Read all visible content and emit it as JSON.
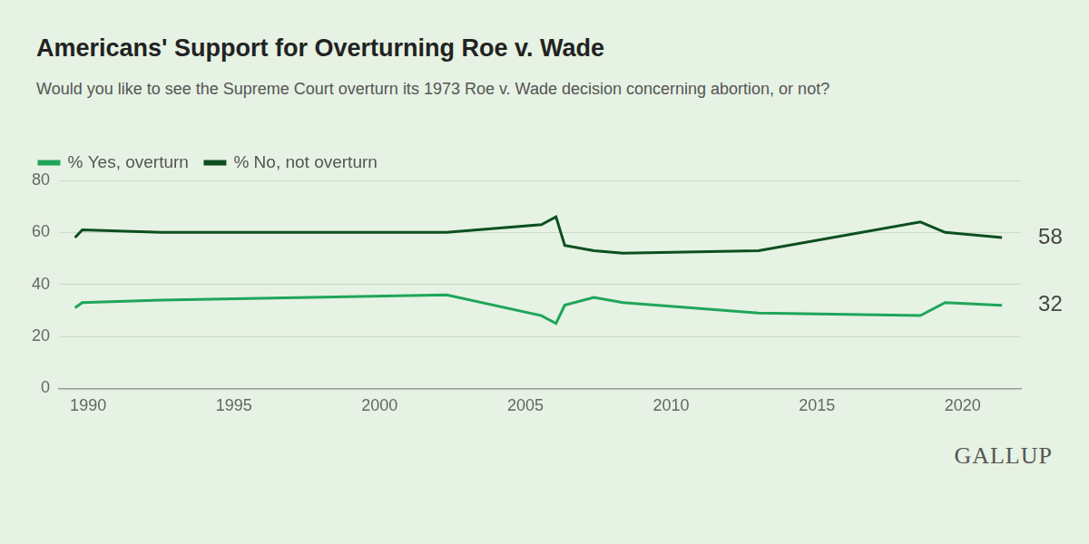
{
  "chart_data": {
    "type": "line",
    "title": "Americans' Support for Overturning Roe v. Wade",
    "subtitle": "Would you like to see the Supreme Court overturn its 1973 Roe v. Wade decision concerning abortion, or not?",
    "source": "GALLUP",
    "x": [
      1989.55,
      1989.8,
      1992.5,
      2002.3,
      2005.55,
      2006.05,
      2006.35,
      2007.35,
      2008.35,
      2013.0,
      2018.55,
      2019.4,
      2021.35
    ],
    "series": [
      {
        "name": "% Yes, overturn",
        "color": "#1fa55a",
        "values": [
          31,
          33,
          34,
          36,
          28,
          25,
          32,
          35,
          33,
          29,
          28,
          33,
          32
        ],
        "value_labels": [
          null,
          null,
          null,
          null,
          null,
          null,
          null,
          null,
          null,
          null,
          null,
          null,
          "32"
        ]
      },
      {
        "name": "% No, not overturn",
        "color": "#0d4f1f",
        "values": [
          58,
          61,
          60,
          60,
          63,
          66,
          55,
          53,
          52,
          53,
          64,
          60,
          58
        ],
        "value_labels": [
          null,
          null,
          null,
          null,
          null,
          null,
          null,
          null,
          null,
          null,
          null,
          null,
          "58"
        ]
      }
    ],
    "xlim": [
      1989,
      2022
    ],
    "xticks": [
      1990,
      1995,
      2000,
      2005,
      2010,
      2015,
      2020
    ],
    "ylim": [
      0,
      80
    ],
    "yticks": [
      0,
      20,
      40,
      60,
      80
    ],
    "grid": true,
    "legend": "top-left"
  }
}
